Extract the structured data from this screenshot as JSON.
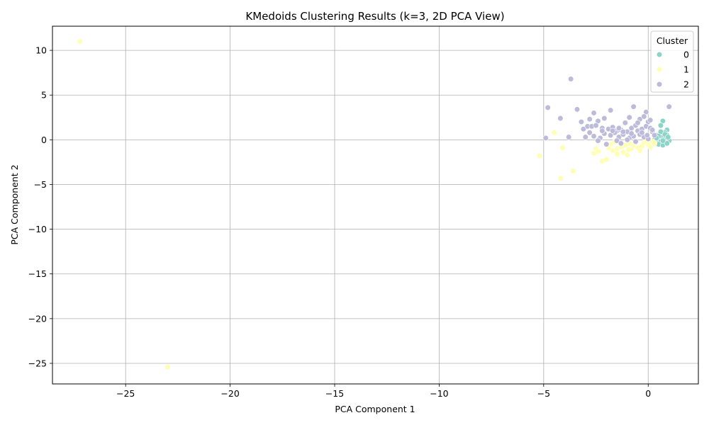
{
  "chart_data": {
    "type": "scatter",
    "title": "KMedoids Clustering Results (k=3, 2D PCA View)",
    "xlabel": "PCA Component 1",
    "ylabel": "PCA Component 2",
    "xlim": [
      -28.5,
      2.4
    ],
    "ylim": [
      -27.3,
      12.7
    ],
    "xticks": [
      -25,
      -20,
      -15,
      -10,
      -5,
      0
    ],
    "yticks": [
      10,
      5,
      0,
      -5,
      -10,
      -15,
      -20,
      -25
    ],
    "xtick_labels": [
      "−25",
      "−20",
      "−15",
      "−10",
      "−5",
      "0"
    ],
    "ytick_labels": [
      "10",
      "5",
      "0",
      "−5",
      "−10",
      "−15",
      "−20",
      "−25"
    ],
    "grid": true,
    "legend": {
      "title": "Cluster",
      "placement": "top-right"
    },
    "series": [
      {
        "name": "0",
        "color": "#8dd3c7",
        "points": [
          [
            0.7,
            2.1
          ],
          [
            0.6,
            1.6
          ],
          [
            0.9,
            1.1
          ],
          [
            0.8,
            0.8
          ],
          [
            0.4,
            0.5
          ],
          [
            0.6,
            0.6
          ],
          [
            0.9,
            0.5
          ],
          [
            0.5,
            0.2
          ],
          [
            0.7,
            0.3
          ],
          [
            0.8,
            0.1
          ],
          [
            0.9,
            0.0
          ],
          [
            1.0,
            -0.1
          ],
          [
            0.4,
            -0.1
          ],
          [
            0.6,
            -0.2
          ],
          [
            0.8,
            -0.3
          ],
          [
            0.5,
            -0.5
          ],
          [
            0.7,
            -0.6
          ],
          [
            0.3,
            0.0
          ],
          [
            0.9,
            -0.4
          ],
          [
            0.6,
            0.9
          ],
          [
            0.5,
            0.4
          ],
          [
            0.8,
            0.6
          ],
          [
            0.7,
            -0.1
          ],
          [
            0.4,
            0.2
          ],
          [
            0.95,
            0.3
          ]
        ]
      },
      {
        "name": "1",
        "color": "#ffffb3",
        "points": [
          [
            -27.2,
            11.0
          ],
          [
            -23.0,
            -25.4
          ],
          [
            -5.2,
            -1.8
          ],
          [
            -4.5,
            0.8
          ],
          [
            -4.1,
            -0.9
          ],
          [
            -4.2,
            -4.3
          ],
          [
            -3.6,
            -3.5
          ],
          [
            -2.6,
            -1.5
          ],
          [
            -2.5,
            -1.0
          ],
          [
            -2.2,
            -2.4
          ],
          [
            -2.0,
            -2.2
          ],
          [
            -1.8,
            -0.5
          ],
          [
            -1.7,
            -1.2
          ],
          [
            -1.5,
            -1.6
          ],
          [
            -1.5,
            -1.0
          ],
          [
            -1.3,
            -0.8
          ],
          [
            -1.2,
            -1.4
          ],
          [
            -1.0,
            -1.7
          ],
          [
            -0.9,
            -0.4
          ],
          [
            -0.8,
            -1.0
          ],
          [
            -0.7,
            -0.6
          ],
          [
            -0.5,
            -0.9
          ],
          [
            -0.4,
            -1.2
          ],
          [
            -0.3,
            -0.7
          ],
          [
            -0.2,
            -0.3
          ],
          [
            0.0,
            -0.5
          ],
          [
            0.1,
            -0.8
          ],
          [
            0.2,
            -0.2
          ],
          [
            -1.1,
            -0.6
          ],
          [
            -0.6,
            -0.3
          ],
          [
            -2.4,
            -1.3
          ],
          [
            -1.6,
            -0.2
          ],
          [
            -0.1,
            -0.1
          ],
          [
            0.3,
            -0.4
          ],
          [
            -1.9,
            -0.9
          ],
          [
            -0.95,
            -1.1
          ]
        ]
      },
      {
        "name": "2",
        "color": "#bebada",
        "points": [
          [
            -3.7,
            6.8
          ],
          [
            -4.8,
            3.6
          ],
          [
            -3.4,
            3.4
          ],
          [
            -4.2,
            2.4
          ],
          [
            -0.7,
            3.7
          ],
          [
            1.0,
            3.7
          ],
          [
            -1.8,
            3.3
          ],
          [
            -2.6,
            3.0
          ],
          [
            -0.1,
            3.1
          ],
          [
            -3.2,
            2.0
          ],
          [
            -2.8,
            2.3
          ],
          [
            -2.4,
            2.1
          ],
          [
            -2.1,
            2.4
          ],
          [
            -0.9,
            2.5
          ],
          [
            -0.4,
            2.3
          ],
          [
            0.0,
            2.0
          ],
          [
            -3.1,
            1.2
          ],
          [
            -2.9,
            1.5
          ],
          [
            -2.7,
            1.5
          ],
          [
            -2.5,
            1.6
          ],
          [
            -2.2,
            1.3
          ],
          [
            -1.9,
            1.2
          ],
          [
            -1.7,
            1.4
          ],
          [
            -1.5,
            1.0
          ],
          [
            -1.3,
            1.1
          ],
          [
            -1.1,
            1.9
          ],
          [
            -1.0,
            0.9
          ],
          [
            -0.8,
            1.3
          ],
          [
            -0.6,
            1.6
          ],
          [
            -0.5,
            1.0
          ],
          [
            -0.3,
            1.2
          ],
          [
            -0.1,
            1.5
          ],
          [
            0.1,
            1.3
          ],
          [
            0.2,
            0.9
          ],
          [
            -3.8,
            0.3
          ],
          [
            -4.9,
            0.2
          ],
          [
            -3.0,
            0.3
          ],
          [
            -2.6,
            0.4
          ],
          [
            -2.3,
            0.2
          ],
          [
            -2.1,
            0.7
          ],
          [
            -1.8,
            0.5
          ],
          [
            -1.6,
            0.8
          ],
          [
            -1.4,
            0.3
          ],
          [
            -1.2,
            0.6
          ],
          [
            -0.9,
            0.2
          ],
          [
            -0.7,
            0.4
          ],
          [
            -0.4,
            0.6
          ],
          [
            -0.2,
            0.3
          ],
          [
            0.0,
            0.1
          ],
          [
            0.3,
            0.5
          ],
          [
            -2.0,
            -0.5
          ],
          [
            -1.5,
            -0.1
          ],
          [
            -1.0,
            0.0
          ],
          [
            -0.6,
            -0.2
          ],
          [
            -2.4,
            -0.1
          ],
          [
            -1.3,
            -0.4
          ],
          [
            -0.3,
            0.8
          ],
          [
            -1.7,
            1.0
          ],
          [
            -2.8,
            0.8
          ],
          [
            -0.5,
            1.9
          ],
          [
            -0.2,
            2.6
          ],
          [
            0.1,
            2.2
          ],
          [
            -1.2,
            0.9
          ],
          [
            -0.8,
            0.7
          ],
          [
            -2.2,
            1.0
          ],
          [
            -1.4,
            1.3
          ],
          [
            0.2,
            1.1
          ],
          [
            -0.05,
            0.5
          ]
        ]
      }
    ]
  }
}
